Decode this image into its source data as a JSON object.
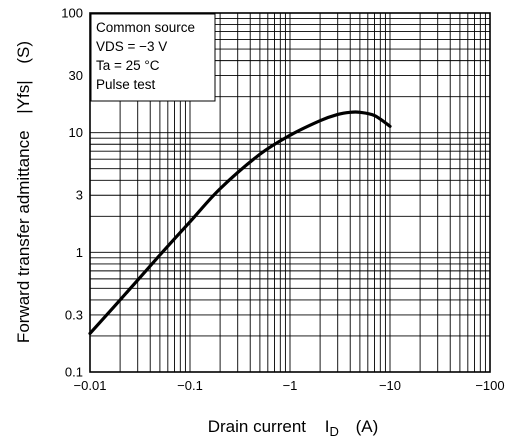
{
  "chart_data": {
    "type": "line",
    "x_scale": "log",
    "y_scale": "log",
    "x_reversed_negative": true,
    "xlim": [
      -0.01,
      -100
    ],
    "ylim": [
      0.1,
      100
    ],
    "x_ticks": [
      -0.01,
      -0.1,
      -1,
      -10,
      -100
    ],
    "x_tick_labels": [
      "−0.01",
      "−0.1",
      "−1",
      "−10",
      "−100"
    ],
    "y_ticks": [
      0.1,
      0.3,
      1,
      3,
      10,
      30,
      100
    ],
    "y_tick_labels": [
      "0.1",
      "0.3",
      "1",
      "3",
      "10",
      "30",
      "100"
    ],
    "xlabel": {
      "main": "Drain current",
      "symbol": "I",
      "subscript": "D",
      "unit": "(A)"
    },
    "ylabel": {
      "main": "Forward transfer admittance",
      "symbol": "|Yfs|",
      "unit": "(S)"
    },
    "grid": true,
    "legend_placement": "top-left",
    "conditions": [
      "Common source",
      "VDS = −3 V",
      "Ta = 25 °C",
      "Pulse test"
    ],
    "series": [
      {
        "x": [
          -0.01,
          -0.02,
          -0.05,
          -0.1,
          -0.2,
          -0.5,
          -1,
          -2,
          -3,
          -4,
          -5,
          -7,
          -10
        ],
        "values": [
          0.21,
          0.4,
          0.95,
          1.8,
          3.4,
          6.6,
          9.5,
          12.6,
          14.2,
          14.8,
          14.8,
          13.9,
          11.3
        ]
      }
    ]
  }
}
